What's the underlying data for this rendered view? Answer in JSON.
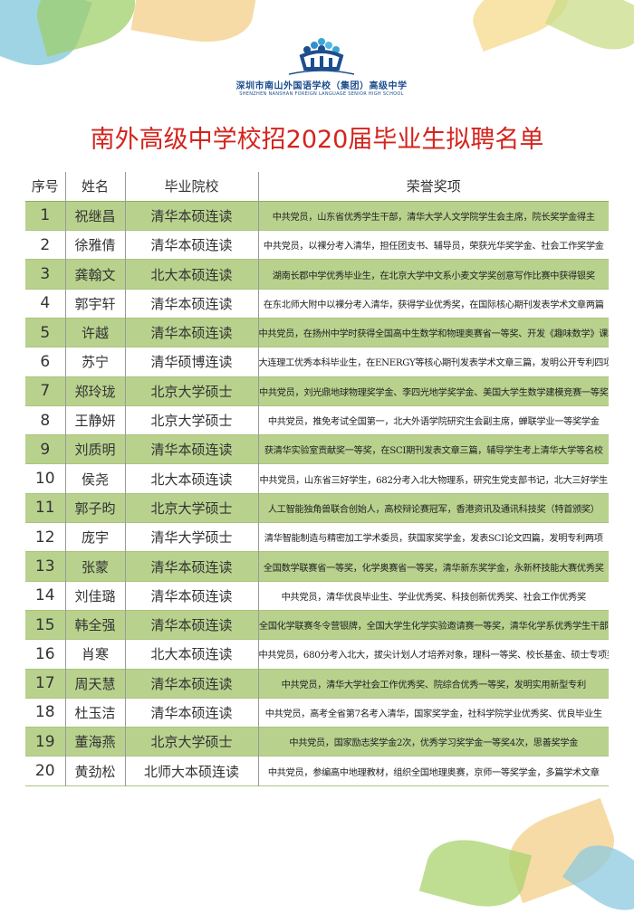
{
  "logo": {
    "cn": "深圳市南山外国语学校（集团）高级中学",
    "en": "SHENZHEN NANSHAN FOREIGN LANGUAGE SENIOR HIGH SCHOOL"
  },
  "title": "南外高级中学校招2020届毕业生拟聘名单",
  "colors": {
    "title": "#d4241d",
    "row_green": "#b8d28e",
    "logo_blue": "#1d4e8f"
  },
  "table": {
    "headers": [
      "序号",
      "姓名",
      "毕业院校",
      "荣誉奖项"
    ],
    "rows": [
      {
        "no": "1",
        "name": "祝继昌",
        "school": "清华本硕连读",
        "honors": "中共党员，山东省优秀学生干部，清华大学人文学院学生会主席，院长奖学金得主"
      },
      {
        "no": "2",
        "name": "徐雅倩",
        "school": "清华本硕连读",
        "honors": "中共党员，以裸分考入清华，担任团支书、辅导员，荣获光华奖学金、社会工作奖学金"
      },
      {
        "no": "3",
        "name": "龚翰文",
        "school": "北大本硕连读",
        "honors": "湖南长郡中学优秀毕业生，在北京大学中文系小麦文学奖创意写作比赛中获得银奖"
      },
      {
        "no": "4",
        "name": "郭宇轩",
        "school": "清华本硕连读",
        "honors": "在东北师大附中以裸分考入清华，获得学业优秀奖，在国际核心期刊发表学术文章两篇"
      },
      {
        "no": "5",
        "name": "许越",
        "school": "清华本硕连读",
        "honors": "中共党员，在扬州中学时获得全国高中生数学和物理奥赛省一等奖、开发《趣味数学》课程"
      },
      {
        "no": "6",
        "name": "苏宁",
        "school": "清华硕博连读",
        "honors": "大连理工优秀本科毕业生，在ENERGY等核心期刊发表学术文章三篇，发明公开专利四项"
      },
      {
        "no": "7",
        "name": "郑玲珑",
        "school": "北京大学硕士",
        "honors": "中共党员，刘光鼎地球物理奖学金、李四光地学奖学金、美国大学生数学建模竞赛一等奖"
      },
      {
        "no": "8",
        "name": "王静妍",
        "school": "北京大学硕士",
        "honors": "中共党员，推免考试全国第一，北大外语学院研究生会副主席，蝉联学业一等奖学金"
      },
      {
        "no": "9",
        "name": "刘质明",
        "school": "清华本硕连读",
        "honors": "获清华实验室贡献奖一等奖，在SCI期刊发表文章三篇，辅导学生考上清华大学等名校"
      },
      {
        "no": "10",
        "name": "侯尧",
        "school": "北大本硕连读",
        "honors": "中共党员，山东省三好学生，682分考入北大物理系，研究生党支部书记，北大三好学生"
      },
      {
        "no": "11",
        "name": "郭子昀",
        "school": "北京大学硕士",
        "honors": "人工智能独角兽联合创始人，高校辩论赛冠军，香港资讯及通讯科技奖（特首颁奖）"
      },
      {
        "no": "12",
        "name": "庞宇",
        "school": "清华大学硕士",
        "honors": "清华智能制造与精密加工学术委员，获国家奖学金，发表SCI论文四篇，发明专利两项"
      },
      {
        "no": "13",
        "name": "张蒙",
        "school": "清华本硕连读",
        "honors": "全国数学联赛省一等奖，化学奥赛省一等奖，清华新东奖学金，永新杯技能大赛优秀奖"
      },
      {
        "no": "14",
        "name": "刘佳璐",
        "school": "清华本硕连读",
        "honors": "中共党员，清华优良毕业生、学业优秀奖、科技创新优秀奖、社会工作优秀奖"
      },
      {
        "no": "15",
        "name": "韩全强",
        "school": "清华本硕连读",
        "honors": "全国化学联赛冬令营银牌，全国大学生化学实验邀请赛一等奖，清华化学系优秀学生干部"
      },
      {
        "no": "16",
        "name": "肖寒",
        "school": "北大本硕连读",
        "honors": "中共党员，680分考入北大，拔尖计划人才培养对象，理科一等奖、校长基金、硕士专项奖学金"
      },
      {
        "no": "17",
        "name": "周天慧",
        "school": "清华本硕连读",
        "honors": "中共党员，清华大学社会工作优秀奖、院综合优秀一等奖，发明实用新型专利"
      },
      {
        "no": "18",
        "name": "杜玉洁",
        "school": "清华本硕连读",
        "honors": "中共党员，高考全省第7名考入清华，国家奖学金，社科学院学业优秀奖、优良毕业生"
      },
      {
        "no": "19",
        "name": "董海燕",
        "school": "北京大学硕士",
        "honors": "中共党员，国家励志奖学金2次，优秀学习奖学金一等奖4次，思善奖学金"
      },
      {
        "no": "20",
        "name": "黄劲松",
        "school": "北师大本硕连读",
        "honors": "中共党员，参编高中地理教材，组织全国地理奥赛，京师一等奖学金，多篇学术文章"
      }
    ]
  }
}
